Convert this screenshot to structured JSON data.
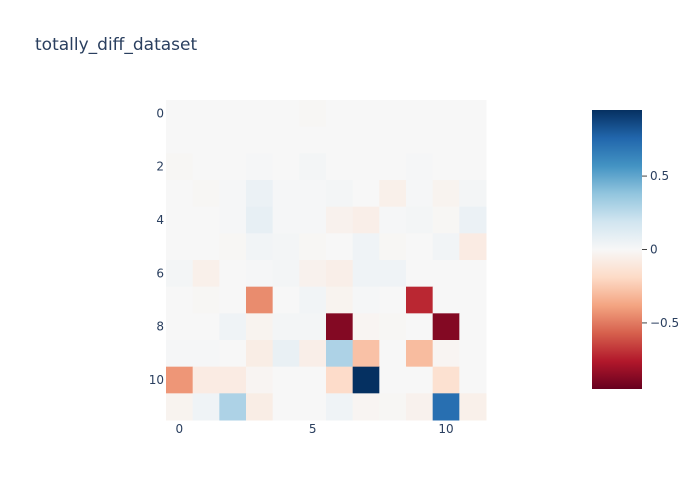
{
  "chart_data": {
    "type": "heatmap",
    "title": "totally_diff_dataset",
    "rows": 12,
    "cols": 12,
    "zmin": -0.95,
    "zmax": 0.95,
    "colorscale": "RdBu",
    "x_tick_values": [
      0,
      5,
      10
    ],
    "x_tick_labels": [
      "0",
      "5",
      "10"
    ],
    "y_tick_values": [
      0,
      2,
      4,
      6,
      8,
      10
    ],
    "y_tick_labels": [
      "0",
      "2",
      "4",
      "6",
      "8",
      "10"
    ],
    "colorbar_tick_values": [
      0.5,
      0,
      -0.5
    ],
    "colorbar_tick_labels": [
      "0.5",
      "0",
      "−0.5"
    ],
    "z": [
      [
        0,
        0,
        0,
        0,
        0,
        -0.01,
        0,
        0,
        0,
        0,
        0,
        0
      ],
      [
        0,
        0,
        0,
        0,
        0,
        0,
        0,
        0,
        0,
        0,
        0,
        0
      ],
      [
        -0.01,
        0,
        0,
        0.01,
        0,
        0.02,
        0,
        0,
        0,
        0.01,
        0,
        0
      ],
      [
        0,
        -0.01,
        0.01,
        0.06,
        0.01,
        0.01,
        0.02,
        0,
        -0.05,
        0.01,
        -0.03,
        0.02
      ],
      [
        0,
        0,
        0.01,
        0.08,
        0.01,
        0.01,
        -0.04,
        -0.06,
        0.01,
        0.02,
        -0.01,
        0.06
      ],
      [
        0,
        0,
        -0.01,
        0.03,
        0.02,
        -0.01,
        0,
        0.04,
        -0.01,
        0,
        0.03,
        -0.08
      ],
      [
        0.02,
        -0.05,
        0,
        0.01,
        0.02,
        -0.04,
        -0.06,
        0.04,
        0.04,
        0,
        0,
        0
      ],
      [
        0,
        -0.01,
        0,
        -0.45,
        0,
        0.03,
        -0.03,
        0.01,
        0,
        -0.72,
        0,
        0
      ],
      [
        0,
        0,
        0.04,
        -0.03,
        0.02,
        0.02,
        -0.88,
        -0.02,
        -0.01,
        0,
        -0.88,
        0
      ],
      [
        0.01,
        0.01,
        0,
        -0.07,
        0.07,
        -0.06,
        0.3,
        -0.28,
        0,
        -0.3,
        -0.02,
        0
      ],
      [
        -0.42,
        -0.08,
        -0.08,
        -0.02,
        0,
        0,
        -0.18,
        0.95,
        0,
        0,
        -0.15,
        0
      ],
      [
        -0.03,
        0.04,
        0.3,
        -0.07,
        0,
        0,
        0.04,
        -0.02,
        -0.01,
        -0.04,
        0.72,
        -0.05
      ]
    ]
  }
}
